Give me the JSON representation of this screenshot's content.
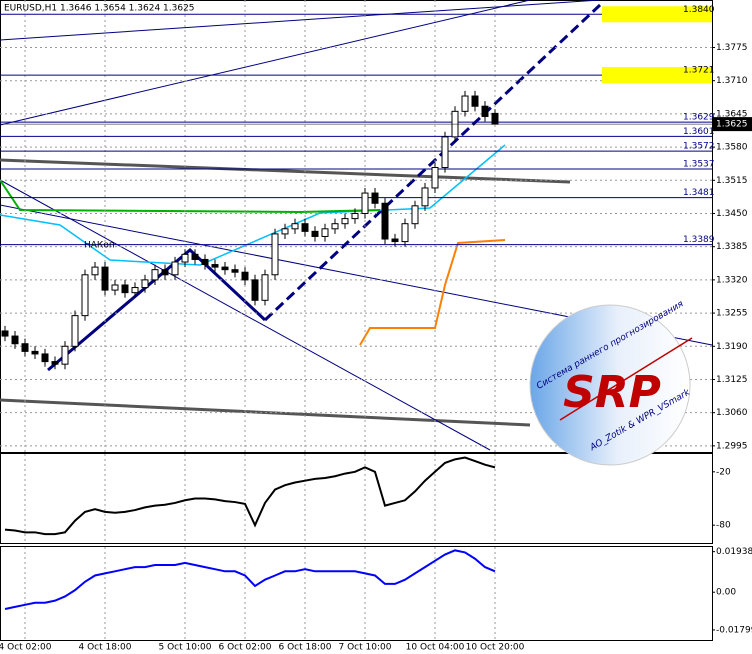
{
  "chart_data": [
    {
      "type": "candlestick",
      "title": "EURUSD,H1  1.3646 1.3654 1.3624 1.3625",
      "annotation": "НАКоп",
      "logo": {
        "title": "SRP",
        "subtitle": "Система раннего прогнозирования",
        "credit": "AO_Zotik & WPR_VSmark"
      },
      "categories": [
        null,
        null,
        "4 Oct 02:00",
        null,
        null,
        null,
        null,
        null,
        null,
        null,
        "4 Oct 18:00",
        null,
        null,
        null,
        null,
        null,
        null,
        null,
        "5 Oct 10:00",
        null,
        null,
        null,
        null,
        null,
        "6 Oct 02:00",
        null,
        null,
        null,
        null,
        null,
        "6 Oct 18:00",
        null,
        null,
        null,
        null,
        null,
        "7 Oct 10:00",
        null,
        null,
        null,
        null,
        null,
        null,
        "10 Oct 04:00",
        null,
        null,
        null,
        null,
        null,
        "10 Oct 20:00"
      ],
      "open": [
        1.322,
        1.321,
        1.3195,
        1.318,
        1.3175,
        1.316,
        1.3155,
        1.319,
        1.325,
        1.333,
        1.3345,
        1.33,
        1.331,
        1.3295,
        1.3305,
        1.332,
        1.334,
        1.333,
        1.3355,
        1.337,
        1.336,
        1.335,
        1.3345,
        1.334,
        1.3335,
        1.332,
        1.328,
        1.333,
        1.341,
        1.342,
        1.343,
        1.3415,
        1.3405,
        1.342,
        1.343,
        1.344,
        1.345,
        1.349,
        1.347,
        1.34,
        1.3395,
        1.343,
        1.3465,
        1.35,
        1.354,
        1.36,
        1.365,
        1.368,
        1.366,
        1.3646
      ],
      "high": [
        1.323,
        1.322,
        1.3205,
        1.319,
        1.3185,
        1.317,
        1.32,
        1.326,
        1.334,
        1.3355,
        1.3355,
        1.332,
        1.332,
        1.3315,
        1.333,
        1.335,
        1.335,
        1.3365,
        1.338,
        1.338,
        1.337,
        1.336,
        1.3355,
        1.335,
        1.3345,
        1.333,
        1.334,
        1.342,
        1.343,
        1.344,
        1.344,
        1.3425,
        1.343,
        1.344,
        1.345,
        1.346,
        1.35,
        1.35,
        1.348,
        1.341,
        1.344,
        1.3475,
        1.351,
        1.355,
        1.361,
        1.366,
        1.369,
        1.369,
        1.367,
        1.3654
      ],
      "low": [
        1.32,
        1.3185,
        1.317,
        1.3165,
        1.315,
        1.3145,
        1.3145,
        1.318,
        1.324,
        1.332,
        1.329,
        1.329,
        1.3285,
        1.3285,
        1.3295,
        1.331,
        1.332,
        1.332,
        1.3345,
        1.335,
        1.334,
        1.3335,
        1.333,
        1.3325,
        1.331,
        1.327,
        1.327,
        1.332,
        1.34,
        1.341,
        1.3405,
        1.3395,
        1.3395,
        1.341,
        1.342,
        1.343,
        1.344,
        1.346,
        1.339,
        1.3385,
        1.3385,
        1.342,
        1.3455,
        1.349,
        1.353,
        1.359,
        1.364,
        1.365,
        1.363,
        1.3624
      ],
      "close": [
        1.321,
        1.3195,
        1.318,
        1.3175,
        1.316,
        1.3155,
        1.319,
        1.325,
        1.333,
        1.3345,
        1.33,
        1.331,
        1.3295,
        1.3305,
        1.332,
        1.334,
        1.333,
        1.3355,
        1.337,
        1.336,
        1.335,
        1.3345,
        1.334,
        1.3335,
        1.332,
        1.328,
        1.333,
        1.341,
        1.342,
        1.343,
        1.3415,
        1.3405,
        1.342,
        1.343,
        1.344,
        1.345,
        1.349,
        1.347,
        1.34,
        1.3395,
        1.343,
        1.3465,
        1.35,
        1.354,
        1.36,
        1.365,
        1.368,
        1.366,
        1.364,
        1.3625
      ],
      "ylim": [
        1.2983,
        1.3868
      ],
      "yticks": [
        1.3775,
        {
          "value": 1.371,
          "label": "1.3710"
        },
        1.3645,
        {
          "value": 1.358,
          "label": "1.3580"
        },
        1.3515,
        {
          "value": 1.345,
          "label": "1.3450"
        },
        1.3385,
        {
          "value": 1.332,
          "label": "1.3320"
        },
        1.3255,
        {
          "value": 1.319,
          "label": "1.3190"
        },
        1.3125,
        {
          "value": 1.306,
          "label": "1.3060"
        },
        1.2995
      ],
      "levels": [
        {
          "value": 1.384,
          "label": "1.3840",
          "highlight": true
        },
        {
          "value": 1.3721,
          "label": "1.3721",
          "highlight": true
        },
        {
          "value": 1.3629,
          "label": "1.3629"
        },
        {
          "value": 1.3601,
          "label": "1.3601"
        },
        {
          "value": 1.3572,
          "label": "1.3572"
        },
        {
          "value": 1.3537,
          "label": "1.3537"
        },
        {
          "value": 1.3481,
          "label": "1.3481"
        },
        {
          "value": 1.3389,
          "label": "1.3389"
        }
      ],
      "last_price": {
        "value": 1.3625,
        "label": "1.3625"
      },
      "grid": true
    },
    {
      "type": "line",
      "series": [
        {
          "color": "#000000",
          "values": [
            -85,
            -86,
            -88,
            -88,
            -90,
            -90,
            -88,
            -75,
            -65,
            -62,
            -65,
            -66,
            -65,
            -63,
            -60,
            -58,
            -57,
            -55,
            -52,
            -50,
            -50,
            -51,
            -53,
            -54,
            -56,
            -80,
            -55,
            -40,
            -35,
            -32,
            -30,
            -28,
            -27,
            -25,
            -22,
            -20,
            -15,
            -20,
            -58,
            -55,
            -52,
            -42,
            -30,
            -20,
            -10,
            -6,
            -4,
            -8,
            -12,
            -15
          ]
        }
      ],
      "ylim": [
        -100,
        0
      ],
      "yticks": [
        -20,
        -80
      ]
    },
    {
      "type": "line",
      "series": [
        {
          "color": "#0000ff",
          "values": [
            -0.008,
            -0.007,
            -0.006,
            -0.005,
            -0.005,
            -0.004,
            -0.002,
            0.001,
            0.005,
            0.008,
            0.009,
            0.01,
            0.011,
            0.012,
            0.012,
            0.013,
            0.013,
            0.013,
            0.014,
            0.013,
            0.012,
            0.011,
            0.01,
            0.01,
            0.008,
            0.003,
            0.006,
            0.008,
            0.01,
            0.01,
            0.011,
            0.01,
            0.01,
            0.01,
            0.01,
            0.01,
            0.009,
            0.008,
            0.004,
            0.004,
            0.006,
            0.009,
            0.012,
            0.015,
            0.018,
            0.02,
            0.019,
            0.016,
            0.012,
            0.01
          ]
        }
      ],
      "ylim": [
        -0.0228,
        0.0216
      ],
      "yticks": [
        0.01938,
        {
          "value": 0,
          "label": "0.00"
        },
        -0.01799
      ]
    }
  ]
}
